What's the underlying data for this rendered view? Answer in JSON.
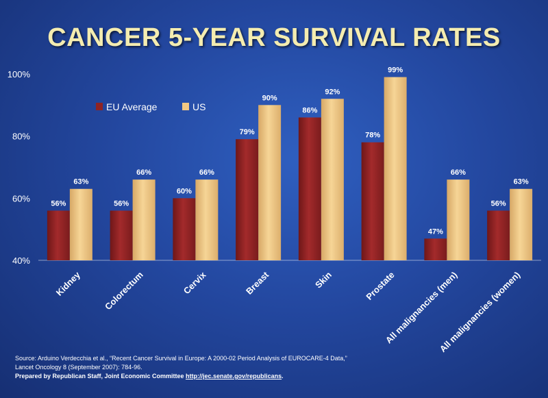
{
  "chart_data": {
    "type": "bar",
    "title": "CANCER 5-YEAR SURVIVAL RATES",
    "xlabel": "",
    "ylabel": "",
    "ylim": [
      40,
      100
    ],
    "yticks": [
      40,
      60,
      80,
      100
    ],
    "ytick_labels": [
      "40%",
      "60%",
      "80%",
      "100%"
    ],
    "categories": [
      "Kidney",
      "Colorectum",
      "Cervix",
      "Breast",
      "Skin",
      "Prostate",
      "All malignancies  (men)",
      "All malignancies  (women)"
    ],
    "series": [
      {
        "name": "EU Average",
        "color": "#8e2324",
        "values": [
          56,
          56,
          60,
          79,
          86,
          78,
          47,
          56
        ],
        "labels": [
          "56%",
          "56%",
          "60%",
          "79%",
          "86%",
          "78%",
          "47%",
          "56%"
        ]
      },
      {
        "name": "US",
        "color": "#f2c883",
        "values": [
          63,
          66,
          66,
          90,
          92,
          99,
          66,
          63
        ],
        "labels": [
          "63%",
          "66%",
          "66%",
          "90%",
          "92%",
          "99%",
          "66%",
          "63%"
        ]
      }
    ],
    "legend_position": "top-left"
  },
  "footer": {
    "source_line1": "Source: Arduino Verdecchia et al., “Recent Cancer Survival in Europe: A 2000-02 Period Analysis of EUROCARE-4  Data,”",
    "source_line2": "Lancet Oncology 8 (September 2007): 784-96.",
    "prepared_by": "Prepared by Republican Staff, Joint Economic Committee ",
    "link": "http://jec.senate.gov/republicans",
    "link_suffix": "."
  }
}
